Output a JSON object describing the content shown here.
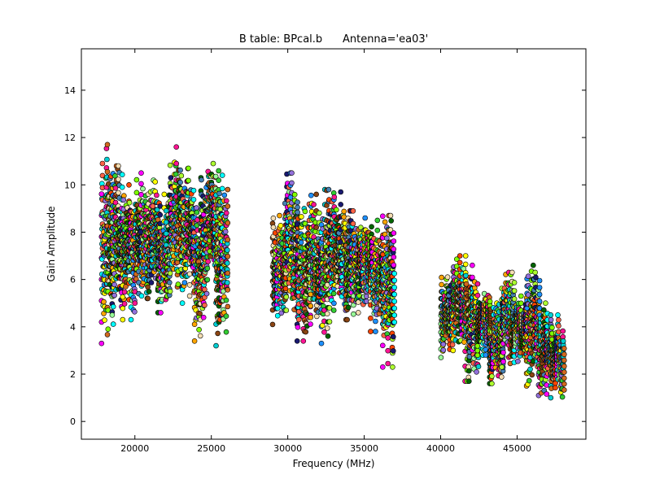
{
  "chart_data": {
    "type": "scatter",
    "title": "B table: BPcal.b      Antenna='ea03'",
    "xlabel": "Frequency (MHz)",
    "ylabel": "Gain Amplitude",
    "xlim": [
      16500,
      49500
    ],
    "ylim": [
      -0.75,
      15.75
    ],
    "xticks": [
      20000,
      25000,
      30000,
      35000,
      40000,
      45000
    ],
    "yticks": [
      0,
      2,
      4,
      6,
      8,
      10,
      12,
      14
    ],
    "grid": false,
    "legend": "none",
    "marker": "circle",
    "marker_edge_color": "#000000",
    "series_colors": [
      "#ff00ff",
      "#00ffff",
      "#ff6347",
      "#98fb98",
      "#ffa500",
      "#1e90ff",
      "#ffff00",
      "#9370db",
      "#32cd32",
      "#ff1493",
      "#00ced1",
      "#d2691e",
      "#7fff00",
      "#8b4513",
      "#f5deb3",
      "#006400",
      "#4682b4",
      "#ff4500",
      "#adff2f",
      "#191970"
    ],
    "series": [
      {
        "x": [
          17800,
          18600
        ],
        "y": [
          3.3,
          11.7
        ]
      },
      {
        "x": [
          18500,
          19300
        ],
        "y": [
          4.5,
          10.8
        ]
      },
      {
        "x": [
          19200,
          20000
        ],
        "y": [
          4.3,
          10.0
        ]
      },
      {
        "x": [
          20000,
          20800
        ],
        "y": [
          5.0,
          10.5
        ]
      },
      {
        "x": [
          20800,
          21600
        ],
        "y": [
          5.2,
          10.2
        ]
      },
      {
        "x": [
          21500,
          22300
        ],
        "y": [
          4.6,
          9.6
        ]
      },
      {
        "x": [
          22300,
          23100
        ],
        "y": [
          5.5,
          11.6
        ]
      },
      {
        "x": [
          23100,
          23900
        ],
        "y": [
          5.0,
          10.7
        ]
      },
      {
        "x": [
          23900,
          24700
        ],
        "y": [
          3.4,
          10.3
        ]
      },
      {
        "x": [
          24700,
          25500
        ],
        "y": [
          5.4,
          10.9
        ]
      },
      {
        "x": [
          25300,
          26100
        ],
        "y": [
          3.2,
          10.4
        ]
      },
      {
        "x": [
          29000,
          29900
        ],
        "y": [
          4.1,
          8.7
        ]
      },
      {
        "x": [
          29800,
          30700
        ],
        "y": [
          4.7,
          10.5
        ]
      },
      {
        "x": [
          30600,
          31500
        ],
        "y": [
          3.4,
          9.0
        ]
      },
      {
        "x": [
          31400,
          32300
        ],
        "y": [
          4.4,
          9.6
        ]
      },
      {
        "x": [
          32200,
          33100
        ],
        "y": [
          3.3,
          9.8
        ]
      },
      {
        "x": [
          33000,
          33900
        ],
        "y": [
          4.7,
          9.7
        ]
      },
      {
        "x": [
          33800,
          34700
        ],
        "y": [
          4.3,
          8.9
        ]
      },
      {
        "x": [
          34600,
          35500
        ],
        "y": [
          4.6,
          8.6
        ]
      },
      {
        "x": [
          35400,
          36300
        ],
        "y": [
          3.8,
          8.5
        ]
      },
      {
        "x": [
          36200,
          37000
        ],
        "y": [
          2.3,
          8.7
        ]
      },
      {
        "x": [
          40000,
          40900
        ],
        "y": [
          2.7,
          6.1
        ]
      },
      {
        "x": [
          40800,
          41700
        ],
        "y": [
          3.0,
          7.0
        ]
      },
      {
        "x": [
          41600,
          42500
        ],
        "y": [
          1.7,
          6.6
        ]
      },
      {
        "x": [
          42400,
          43300
        ],
        "y": [
          2.8,
          5.4
        ]
      },
      {
        "x": [
          43200,
          44100
        ],
        "y": [
          1.6,
          5.0
        ]
      },
      {
        "x": [
          44000,
          44900
        ],
        "y": [
          2.3,
          6.3
        ]
      },
      {
        "x": [
          44800,
          45700
        ],
        "y": [
          2.5,
          5.3
        ]
      },
      {
        "x": [
          45600,
          46500
        ],
        "y": [
          1.5,
          6.6
        ]
      },
      {
        "x": [
          46400,
          47300
        ],
        "y": [
          1.1,
          5.0
        ]
      },
      {
        "x": [
          47200,
          48100
        ],
        "y": [
          1.0,
          4.5
        ]
      }
    ]
  }
}
